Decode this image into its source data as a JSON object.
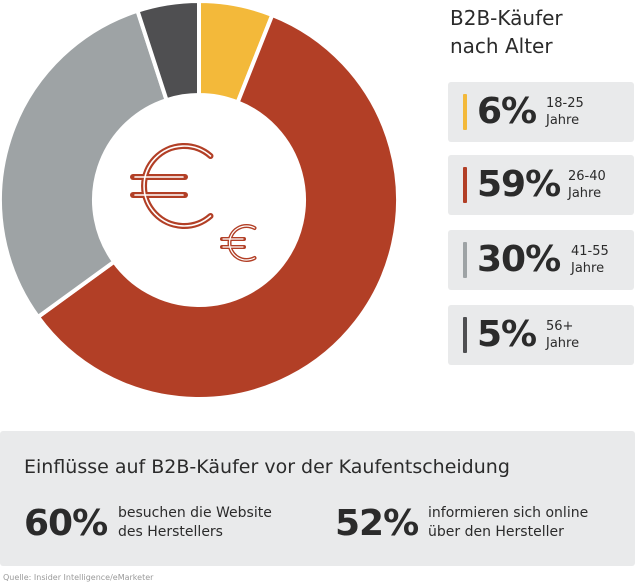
{
  "chart_data": {
    "type": "pie",
    "title": "B2B-Käufer nach Alter",
    "title_lines": [
      "B2B-Käufer",
      "nach Alter"
    ],
    "unit": "%",
    "slices": [
      {
        "label": "18-25 Jahre",
        "range": "18-25",
        "range_unit": "Jahre",
        "display": "6%",
        "value": 6,
        "color": "#f3b93a"
      },
      {
        "label": "26-40 Jahre",
        "range": "26-40",
        "range_unit": "Jahre",
        "display": "59%",
        "value": 59,
        "color": "#b23f26"
      },
      {
        "label": "41-55 Jahre",
        "range": "41-55",
        "range_unit": "Jahre",
        "display": "30%",
        "value": 30,
        "color": "#9ea3a5"
      },
      {
        "label": "56+ Jahre",
        "range": "56+",
        "range_unit": "Jahre",
        "display": "5%",
        "value": 5,
        "color": "#4f4f51"
      }
    ],
    "center_icon": "euro-coins-icon",
    "legend_position": "right"
  },
  "influences": {
    "title": "Einflüsse auf B2B-Käufer vor der Kaufentscheidung",
    "items": [
      {
        "value": "60%",
        "text_lines": [
          "besuchen die Website",
          "des Herstellers"
        ]
      },
      {
        "value": "52%",
        "text_lines": [
          "informieren sich online",
          "über den Hersteller"
        ]
      }
    ]
  },
  "source": "Quelle: Insider Intelligence/eMarketer",
  "colors": {
    "panel": "#e9eaeb",
    "text": "#2b2b2b",
    "accent_icon": "#b23f26"
  }
}
